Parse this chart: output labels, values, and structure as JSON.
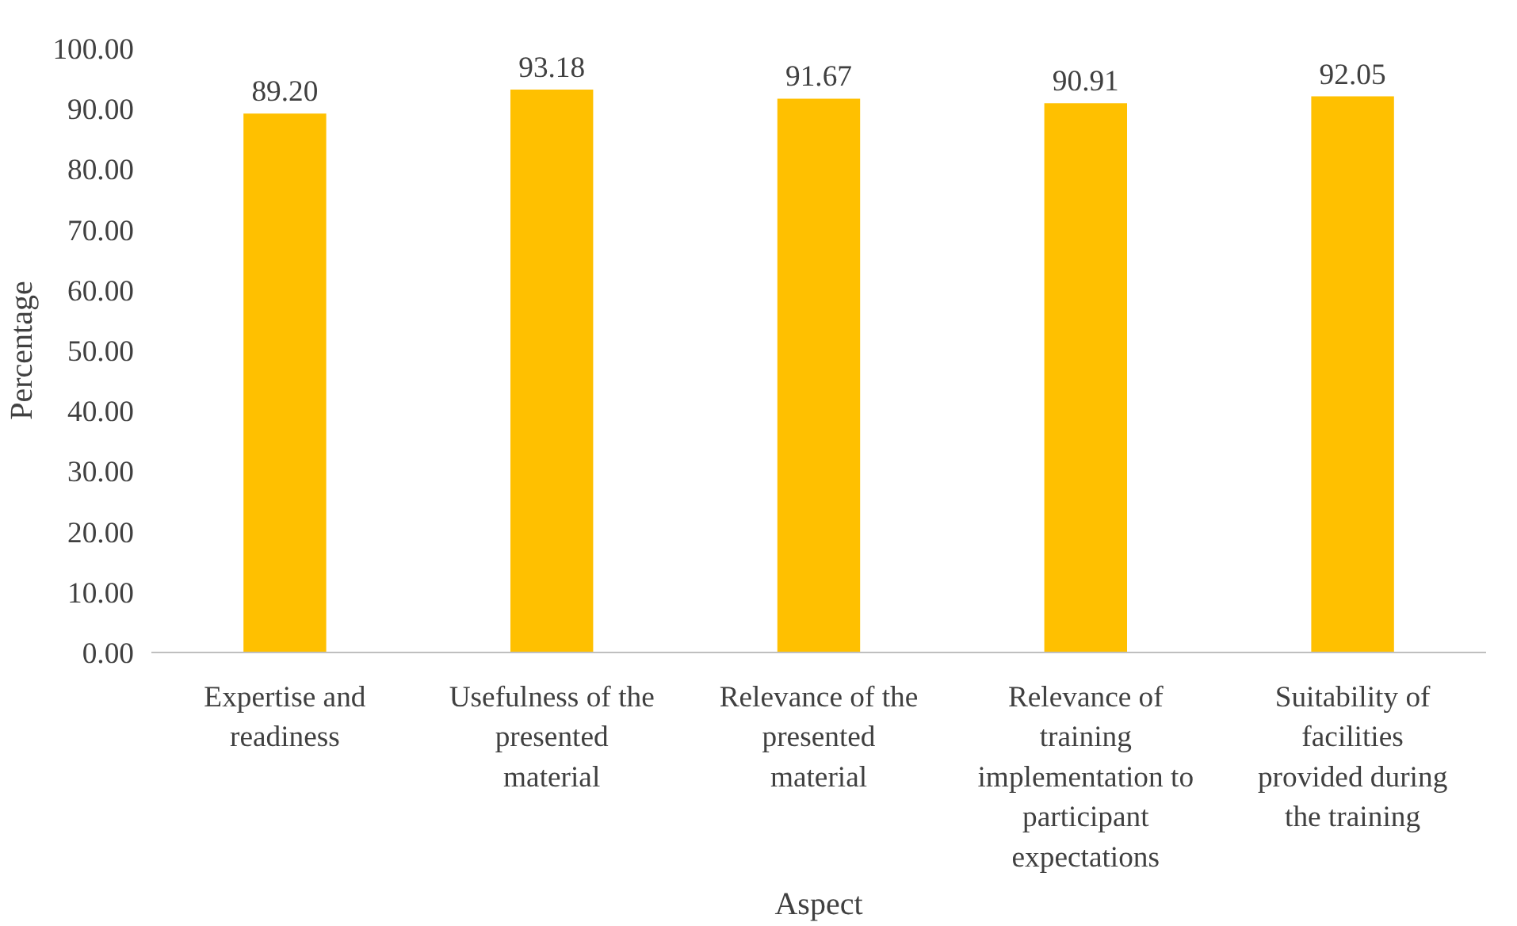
{
  "chart_data": {
    "type": "bar",
    "xlabel": "Aspect",
    "ylabel": "Percentage",
    "categories": [
      "Expertise and readiness",
      "Usefulness of the presented material",
      "Relevance of the presented material",
      "Relevance of training implementation to participant expectations",
      "Suitability of facilities provided during the training"
    ],
    "values": [
      89.2,
      93.18,
      91.67,
      90.91,
      92.05
    ],
    "value_labels": [
      "89.20",
      "93.18",
      "91.67",
      "90.91",
      "92.05"
    ],
    "color": "#ffc000",
    "ylim": [
      0,
      100
    ],
    "yticks": [
      {
        "value": 0,
        "label": "0.00"
      },
      {
        "value": 10,
        "label": "10.00"
      },
      {
        "value": 20,
        "label": "20.00"
      },
      {
        "value": 30,
        "label": "30.00"
      },
      {
        "value": 40,
        "label": "40.00"
      },
      {
        "value": 50,
        "label": "50.00"
      },
      {
        "value": 60,
        "label": "60.00"
      },
      {
        "value": 70,
        "label": "70.00"
      },
      {
        "value": 80,
        "label": "80.00"
      },
      {
        "value": 90,
        "label": "90.00"
      },
      {
        "value": 100,
        "label": "100.00"
      }
    ],
    "grid": false
  }
}
